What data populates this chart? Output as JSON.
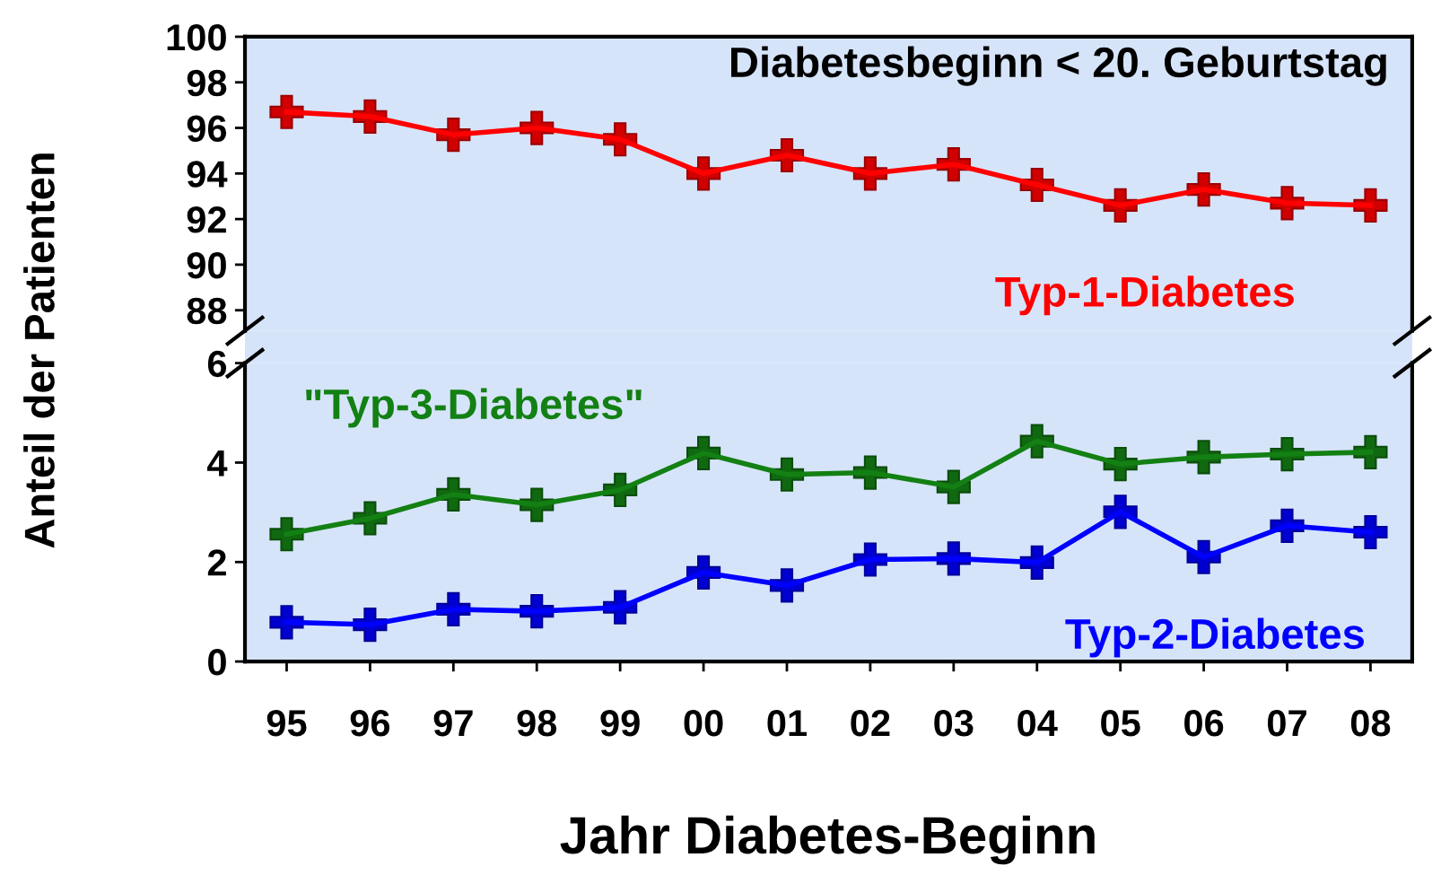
{
  "chart_data": [
    {
      "type": "line",
      "annotations": [
        "Diabetesbeginn < 20. Geburtstag"
      ],
      "ylabel": "Anteil der Patienten",
      "categories": [
        "95",
        "96",
        "97",
        "98",
        "99",
        "00",
        "01",
        "02",
        "03",
        "04",
        "05",
        "06",
        "07",
        "08"
      ],
      "series": [
        {
          "name": "Typ-1-Diabetes",
          "color": "#ff0000",
          "values": [
            96.7,
            96.5,
            95.7,
            96.0,
            95.5,
            94.0,
            94.8,
            94.0,
            94.4,
            93.5,
            92.6,
            93.3,
            92.7,
            92.6
          ]
        }
      ],
      "ylim": [
        87.1,
        100
      ],
      "yticks": [
        88,
        90,
        92,
        94,
        96,
        98,
        100
      ],
      "tick_labels": "y",
      "grid": false,
      "marker": "cross",
      "line_style": "solid"
    },
    {
      "type": "line",
      "xlabel": "Jahr Diabetes-Beginn",
      "categories": [
        "95",
        "96",
        "97",
        "98",
        "99",
        "00",
        "01",
        "02",
        "03",
        "04",
        "05",
        "06",
        "07",
        "08"
      ],
      "series": [
        {
          "name": "\"Typ-3-Diabetes\"",
          "color": "#138013",
          "values": [
            2.56,
            2.88,
            3.36,
            3.15,
            3.45,
            4.19,
            3.76,
            3.8,
            3.51,
            4.43,
            3.97,
            4.11,
            4.17,
            4.21
          ]
        },
        {
          "name": "Typ-2-Diabetes",
          "color": "#0000ff",
          "values": [
            0.79,
            0.74,
            1.05,
            1.01,
            1.09,
            1.79,
            1.53,
            2.05,
            2.07,
            1.99,
            3.01,
            2.1,
            2.73,
            2.6
          ]
        }
      ],
      "ylim": [
        0,
        6
      ],
      "yticks": [
        0,
        2,
        4,
        6
      ],
      "grid": false,
      "marker": "cross",
      "line_style": "solid"
    }
  ]
}
